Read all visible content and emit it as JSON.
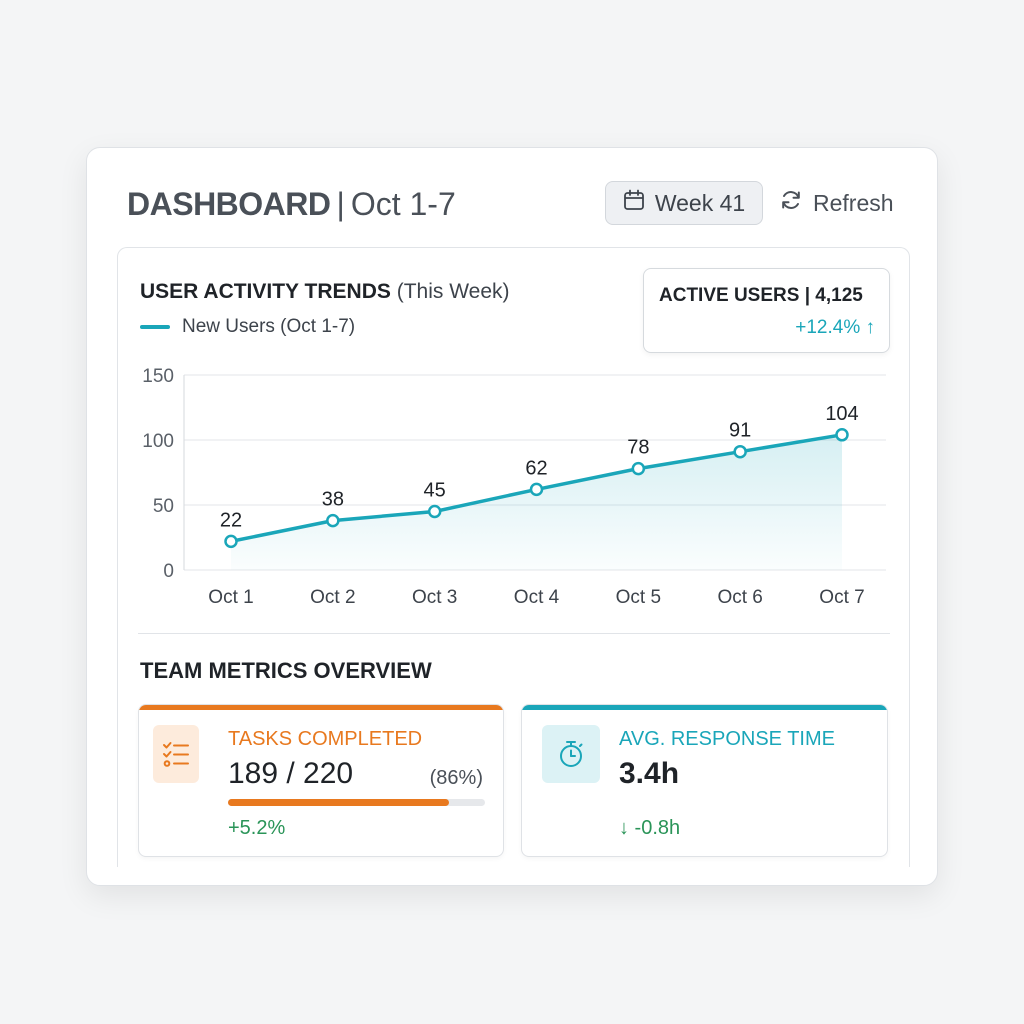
{
  "header": {
    "title": "DASHBOARD",
    "separator": "|",
    "date_range": "Oct 1-7",
    "week_button_label": "Week 41",
    "week_button_icon": "calendar-icon",
    "refresh_label": "Refresh",
    "refresh_icon": "refresh-icon"
  },
  "activity": {
    "title": "USER ACTIVITY TRENDS",
    "title_suffix": "(This Week)",
    "kpi": {
      "label": "ACTIVE USERS | 4,125",
      "change": "+12.4% ↑"
    }
  },
  "chart_data": {
    "type": "line",
    "categories": [
      "Oct 1",
      "Oct 2",
      "Oct 3",
      "Oct 4",
      "Oct 5",
      "Oct 6",
      "Oct 7"
    ],
    "series": [
      {
        "name": "New Users (Oct 1-7)",
        "values": [
          22,
          38,
          45,
          62,
          78,
          91,
          104
        ],
        "color": "#1aa6b9"
      }
    ],
    "yticks": [
      0,
      50,
      100,
      150
    ],
    "ylim": [
      0,
      150
    ],
    "grid": true,
    "area_fill": true,
    "data_labels": true
  },
  "metrics": {
    "title": "TEAM METRICS OVERVIEW",
    "tasks": {
      "label": "TASKS COMPLETED",
      "done": 189,
      "total": 220,
      "value_text": "189 / 220",
      "percent_text": "(86%)",
      "progress": 0.86,
      "delta": "+5.2%",
      "icon": "checklist-icon",
      "accent": "#e8791f"
    },
    "response": {
      "label": "AVG. RESPONSE TIME",
      "value": "3.4h",
      "delta": "↓ -0.8h",
      "icon": "stopwatch-icon",
      "accent": "#1aa6b9"
    }
  }
}
